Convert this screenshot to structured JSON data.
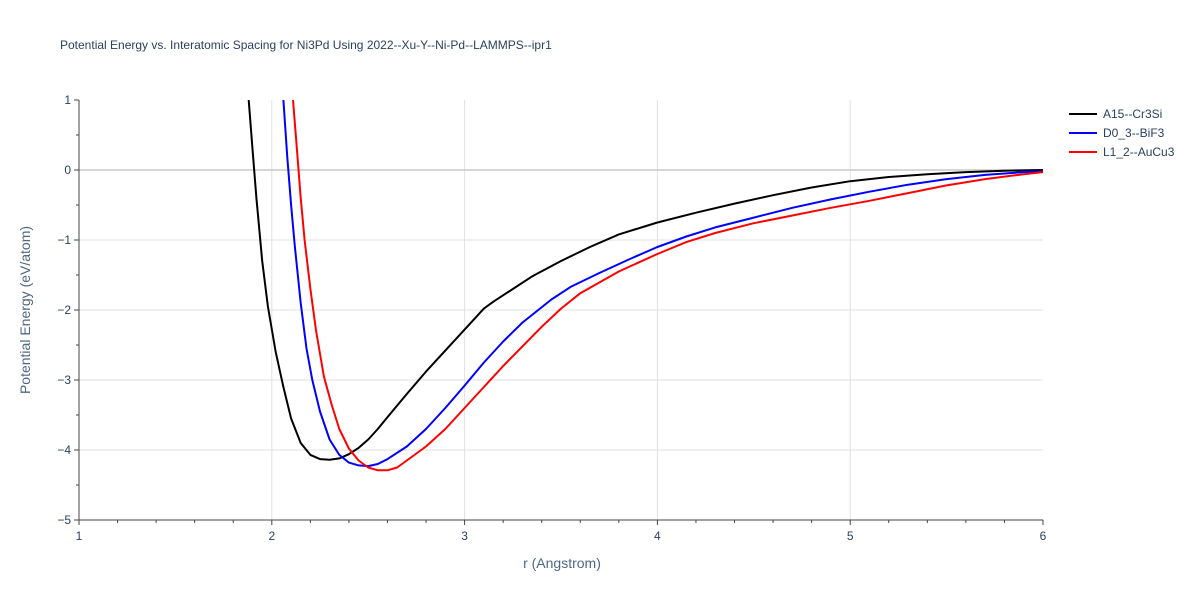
{
  "chart_data": {
    "type": "line",
    "title": "Potential Energy vs. Interatomic Spacing for Ni3Pd Using 2022--Xu-Y--Ni-Pd--LAMMPS--ipr1",
    "xlabel": "r (Angstrom)",
    "ylabel": "Potential Energy (eV/atom)",
    "xlim": [
      1,
      6
    ],
    "ylim": [
      -5,
      1
    ],
    "x_ticks": [
      "1",
      "2",
      "3",
      "4",
      "5",
      "6"
    ],
    "y_ticks": [
      "1",
      "0",
      "−1",
      "−2",
      "−3",
      "−4",
      "−5"
    ],
    "grid": true,
    "legend_position": "top-right",
    "series": [
      {
        "name": "A15--Cr3Si",
        "color": "#000000",
        "x": [
          1.88,
          1.9,
          1.92,
          1.95,
          1.98,
          2.02,
          2.06,
          2.1,
          2.15,
          2.2,
          2.25,
          2.3,
          2.35,
          2.4,
          2.45,
          2.5,
          2.55,
          2.6,
          2.7,
          2.8,
          2.9,
          3.0,
          3.1,
          3.15,
          3.25,
          3.35,
          3.5,
          3.65,
          3.8,
          4.0,
          4.2,
          4.4,
          4.6,
          4.8,
          5.0,
          5.2,
          5.4,
          5.6,
          5.8,
          6.0
        ],
        "y": [
          1.0,
          0.3,
          -0.4,
          -1.3,
          -1.95,
          -2.6,
          -3.1,
          -3.55,
          -3.9,
          -4.07,
          -4.13,
          -4.14,
          -4.12,
          -4.06,
          -3.97,
          -3.85,
          -3.7,
          -3.53,
          -3.2,
          -2.88,
          -2.58,
          -2.28,
          -1.98,
          -1.88,
          -1.7,
          -1.52,
          -1.3,
          -1.1,
          -0.92,
          -0.75,
          -0.61,
          -0.48,
          -0.36,
          -0.25,
          -0.16,
          -0.1,
          -0.06,
          -0.03,
          -0.01,
          0.0
        ]
      },
      {
        "name": "D0_3--BiF3",
        "color": "#0000ff",
        "x": [
          2.06,
          2.08,
          2.1,
          2.12,
          2.15,
          2.18,
          2.21,
          2.25,
          2.3,
          2.35,
          2.4,
          2.45,
          2.5,
          2.55,
          2.6,
          2.7,
          2.8,
          2.9,
          3.0,
          3.1,
          3.2,
          3.3,
          3.45,
          3.55,
          3.7,
          3.85,
          4.0,
          4.15,
          4.3,
          4.5,
          4.7,
          4.9,
          5.1,
          5.3,
          5.5,
          5.7,
          5.9,
          6.0
        ],
        "y": [
          1.0,
          0.2,
          -0.5,
          -1.1,
          -1.9,
          -2.55,
          -3.0,
          -3.45,
          -3.85,
          -4.07,
          -4.18,
          -4.22,
          -4.23,
          -4.2,
          -4.13,
          -3.95,
          -3.7,
          -3.4,
          -3.08,
          -2.75,
          -2.45,
          -2.18,
          -1.85,
          -1.67,
          -1.47,
          -1.28,
          -1.1,
          -0.95,
          -0.82,
          -0.68,
          -0.54,
          -0.42,
          -0.31,
          -0.21,
          -0.13,
          -0.07,
          -0.03,
          -0.02
        ]
      },
      {
        "name": "L1_2--AuCu3",
        "color": "#ff0000",
        "x": [
          2.11,
          2.13,
          2.15,
          2.17,
          2.2,
          2.23,
          2.27,
          2.31,
          2.35,
          2.4,
          2.45,
          2.5,
          2.55,
          2.6,
          2.65,
          2.7,
          2.8,
          2.9,
          3.0,
          3.1,
          3.2,
          3.3,
          3.4,
          3.5,
          3.6,
          3.8,
          4.0,
          4.15,
          4.3,
          4.5,
          4.7,
          4.9,
          5.1,
          5.3,
          5.5,
          5.7,
          5.9,
          6.0
        ],
        "y": [
          1.0,
          0.3,
          -0.4,
          -1.0,
          -1.7,
          -2.3,
          -2.95,
          -3.35,
          -3.7,
          -3.98,
          -4.15,
          -4.25,
          -4.29,
          -4.29,
          -4.25,
          -4.15,
          -3.95,
          -3.7,
          -3.4,
          -3.1,
          -2.8,
          -2.52,
          -2.24,
          -1.98,
          -1.76,
          -1.45,
          -1.2,
          -1.03,
          -0.9,
          -0.76,
          -0.65,
          -0.54,
          -0.44,
          -0.33,
          -0.22,
          -0.13,
          -0.06,
          -0.03
        ]
      }
    ]
  }
}
